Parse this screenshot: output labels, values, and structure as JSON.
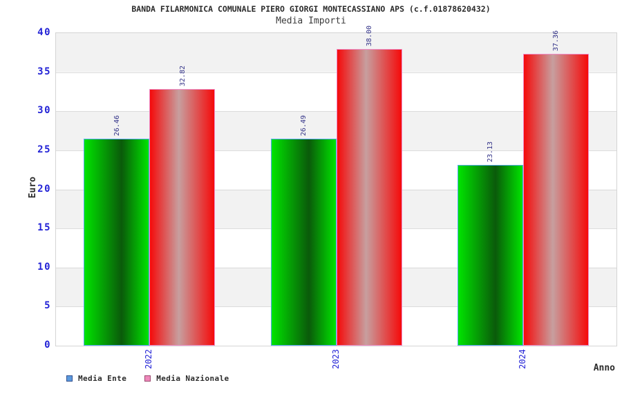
{
  "title": "BANDA FILARMONICA COMUNALE PIERO GIORGI MONTECASSIANO APS (c.f.01878620432)",
  "subtitle": "Media Importi",
  "axes": {
    "y_label": "Euro",
    "x_label": "Anno",
    "y_ticks": [
      "0",
      "5",
      "10",
      "15",
      "20",
      "25",
      "30",
      "35",
      "40"
    ],
    "x_ticks": [
      "2022",
      "2023",
      "2024"
    ]
  },
  "legend": {
    "items": [
      {
        "label": "Media Ente",
        "swatch_fill": "#5b99dd",
        "swatch_border": "#33518f"
      },
      {
        "label": "Media Nazionale",
        "swatch_fill": "#ee88bb",
        "swatch_border": "#9c4a70"
      }
    ]
  },
  "chart_data": {
    "type": "bar",
    "title": "Media Importi",
    "categories": [
      "2022",
      "2023",
      "2024"
    ],
    "series": [
      {
        "name": "Media Ente",
        "values": [
          26.46,
          26.49,
          23.13
        ],
        "labels": [
          "26.46",
          "26.49",
          "23.13"
        ]
      },
      {
        "name": "Media Nazionale",
        "values": [
          32.82,
          38.0,
          37.36
        ],
        "labels": [
          "32.82",
          "38.00",
          "37.36"
        ]
      }
    ],
    "xlabel": "Anno",
    "ylabel": "Euro",
    "ylim": [
      0,
      40
    ],
    "ytick_step": 5,
    "grid": "horizontal-bands",
    "legend_position": "bottom-left",
    "value_label_rotation": -90,
    "category_label_rotation": -90
  },
  "colors": {
    "green_bar_edge": "#00e400",
    "green_bar_mid": "#0a5a0a",
    "green_bar_border": "#58aaf5",
    "red_bar_edge": "#f50a0a",
    "red_bar_mid": "#c79f9f",
    "red_bar_border": "#f08cc8",
    "tick_label": "#2323d6",
    "value_label": "#333388",
    "band_gray": "#f2f2f2",
    "band_white": "#ffffff",
    "grid_line": "#dcdcdc",
    "plot_border": "#d4d4d4",
    "text_dark": "#2b2b2b"
  }
}
